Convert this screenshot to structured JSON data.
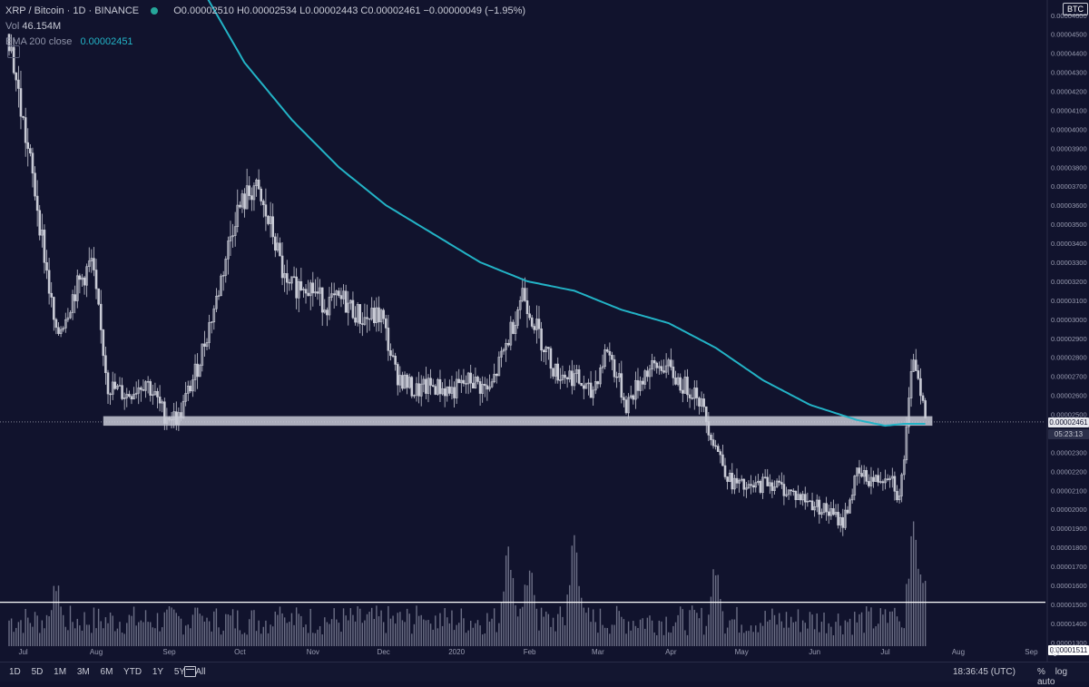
{
  "legend": {
    "symbol": "XRP / Bitcoin · 1D · BINANCE",
    "ohlc": "O0.00002510 H0.00002534 L0.00002443 C0.00002461 −0.00000049 (−1.95%)",
    "vol_label": "Vol",
    "vol_value": "46.154M",
    "ema_label": "EMA 200 close",
    "ema_value": "0.00002451"
  },
  "badge": "BTC",
  "tags": {
    "last_price": "0.00002461",
    "countdown": "05:23:13",
    "hline_price": "0.00001511"
  },
  "toolbar": {
    "ranges": [
      "1D",
      "5D",
      "1M",
      "3M",
      "6M",
      "YTD",
      "1Y",
      "5Y",
      "All"
    ],
    "clock": "18:36:45 (UTC)",
    "opts": [
      "%",
      "log",
      "auto"
    ]
  },
  "colors": {
    "background": "#11132d",
    "candle": "#c9cbd6",
    "ema": "#23b3c6",
    "zone": "#d7d9e3",
    "hline": "#ffffff"
  },
  "icons": [
    "calendar-icon",
    "gear-icon",
    "collapse-icon",
    "status-dot"
  ],
  "chart_data": {
    "type": "line",
    "title": "XRP / Bitcoin · 1D · BINANCE",
    "y_unit": "BTC",
    "yticks": [
      "0.00004600",
      "0.00004500",
      "0.00004400",
      "0.00004300",
      "0.00004200",
      "0.00004100",
      "0.00004000",
      "0.00003900",
      "0.00003800",
      "0.00003700",
      "0.00003600",
      "0.00003500",
      "0.00003400",
      "0.00003300",
      "0.00003200",
      "0.00003100",
      "0.00003000",
      "0.00002900",
      "0.00002800",
      "0.00002700",
      "0.00002600",
      "0.00002500",
      "0.00002400",
      "0.00002300",
      "0.00002200",
      "0.00002100",
      "0.00002000",
      "0.00001900",
      "0.00001800",
      "0.00001700",
      "0.00001600",
      "0.00001500",
      "0.00001400",
      "0.00001300"
    ],
    "ylim": [
      1.28e-05,
      4.68e-05
    ],
    "xticks": [
      "Jul",
      "Aug",
      "Sep",
      "Oct",
      "Nov",
      "Dec",
      "2020",
      "Feb",
      "Mar",
      "Apr",
      "May",
      "Jun",
      "Jul",
      "Aug",
      "Sep"
    ],
    "xtick_index": [
      6,
      37,
      68,
      98,
      129,
      159,
      190,
      221,
      250,
      281,
      311,
      342,
      372,
      403,
      434
    ],
    "price_close": [
      [
        0,
        4.5e-05
      ],
      [
        5,
        4.1e-05
      ],
      [
        12,
        3.6e-05
      ],
      [
        20,
        2.9e-05
      ],
      [
        28,
        3.15e-05
      ],
      [
        35,
        3.3e-05
      ],
      [
        42,
        2.65e-05
      ],
      [
        50,
        2.6e-05
      ],
      [
        58,
        2.68e-05
      ],
      [
        66,
        2.5e-05
      ],
      [
        72,
        2.48e-05
      ],
      [
        80,
        2.75e-05
      ],
      [
        88,
        3.1e-05
      ],
      [
        96,
        3.55e-05
      ],
      [
        104,
        3.7e-05
      ],
      [
        112,
        3.45e-05
      ],
      [
        118,
        3.15e-05
      ],
      [
        126,
        3.2e-05
      ],
      [
        134,
        3.08e-05
      ],
      [
        142,
        3.1e-05
      ],
      [
        150,
        3e-05
      ],
      [
        158,
        3.02e-05
      ],
      [
        164,
        2.72e-05
      ],
      [
        172,
        2.62e-05
      ],
      [
        180,
        2.65e-05
      ],
      [
        188,
        2.62e-05
      ],
      [
        196,
        2.68e-05
      ],
      [
        204,
        2.62e-05
      ],
      [
        212,
        2.9e-05
      ],
      [
        218,
        3.15e-05
      ],
      [
        224,
        2.95e-05
      ],
      [
        232,
        2.72e-05
      ],
      [
        240,
        2.7e-05
      ],
      [
        247,
        2.6e-05
      ],
      [
        254,
        2.85e-05
      ],
      [
        262,
        2.55e-05
      ],
      [
        270,
        2.72e-05
      ],
      [
        278,
        2.76e-05
      ],
      [
        286,
        2.65e-05
      ],
      [
        292,
        2.62e-05
      ],
      [
        298,
        2.4e-05
      ],
      [
        306,
        2.15e-05
      ],
      [
        314,
        2.1e-05
      ],
      [
        322,
        2.15e-05
      ],
      [
        330,
        2.1e-05
      ],
      [
        338,
        2.05e-05
      ],
      [
        346,
        2e-05
      ],
      [
        354,
        1.93e-05
      ],
      [
        360,
        2.18e-05
      ],
      [
        368,
        2.15e-05
      ],
      [
        374,
        2.2e-05
      ],
      [
        378,
        2.05e-05
      ],
      [
        381,
        2.4e-05
      ],
      [
        384,
        2.82e-05
      ],
      [
        387,
        2.65e-05
      ],
      [
        389,
        2.46e-05
      ]
    ],
    "ema200": [
      [
        80,
        4.78e-05
      ],
      [
        100,
        4.35e-05
      ],
      [
        120,
        4.05e-05
      ],
      [
        140,
        3.8e-05
      ],
      [
        160,
        3.6e-05
      ],
      [
        180,
        3.45e-05
      ],
      [
        200,
        3.3e-05
      ],
      [
        220,
        3.2e-05
      ],
      [
        240,
        3.15e-05
      ],
      [
        260,
        3.05e-05
      ],
      [
        280,
        2.98e-05
      ],
      [
        300,
        2.85e-05
      ],
      [
        320,
        2.68e-05
      ],
      [
        340,
        2.55e-05
      ],
      [
        360,
        2.47e-05
      ],
      [
        372,
        2.44e-05
      ],
      [
        380,
        2.45e-05
      ],
      [
        389,
        2.45e-05
      ]
    ],
    "last_index": 389,
    "support_zone": [
      2.44e-05,
      2.49e-05
    ],
    "hline": 1.511e-05,
    "volume_peaks": [
      [
        20,
        0.55
      ],
      [
        80,
        0.35
      ],
      [
        115,
        0.4
      ],
      [
        175,
        0.3
      ],
      [
        212,
        0.85
      ],
      [
        221,
        0.75
      ],
      [
        240,
        0.95
      ],
      [
        300,
        0.7
      ],
      [
        376,
        0.35
      ],
      [
        384,
        1.0
      ],
      [
        387,
        0.75
      ]
    ],
    "grid": false
  }
}
